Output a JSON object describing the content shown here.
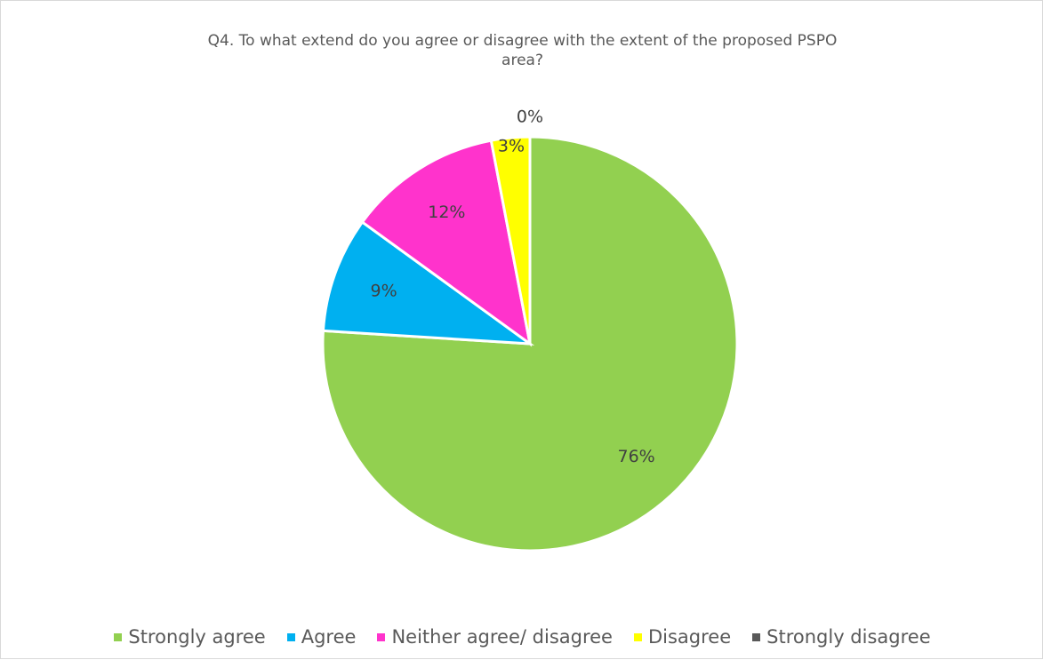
{
  "chart_data": {
    "type": "pie",
    "title_lines": [
      "Q4. To what extend do you agree or disagree with the extent of the proposed PSPO",
      "area?"
    ],
    "categories": [
      "Strongly agree",
      "Agree",
      "Neither agree/ disagree",
      "Disagree",
      "Strongly disagree"
    ],
    "values": [
      76,
      9,
      12,
      3,
      0
    ],
    "data_labels": [
      "76%",
      "9%",
      "12%",
      "3%",
      "0%"
    ],
    "colors": [
      "#92d050",
      "#00b0f0",
      "#ff33cc",
      "#ffff00",
      "#595959"
    ],
    "legend_position": "bottom",
    "start_angle_deg": 0,
    "direction": "clockwise"
  }
}
